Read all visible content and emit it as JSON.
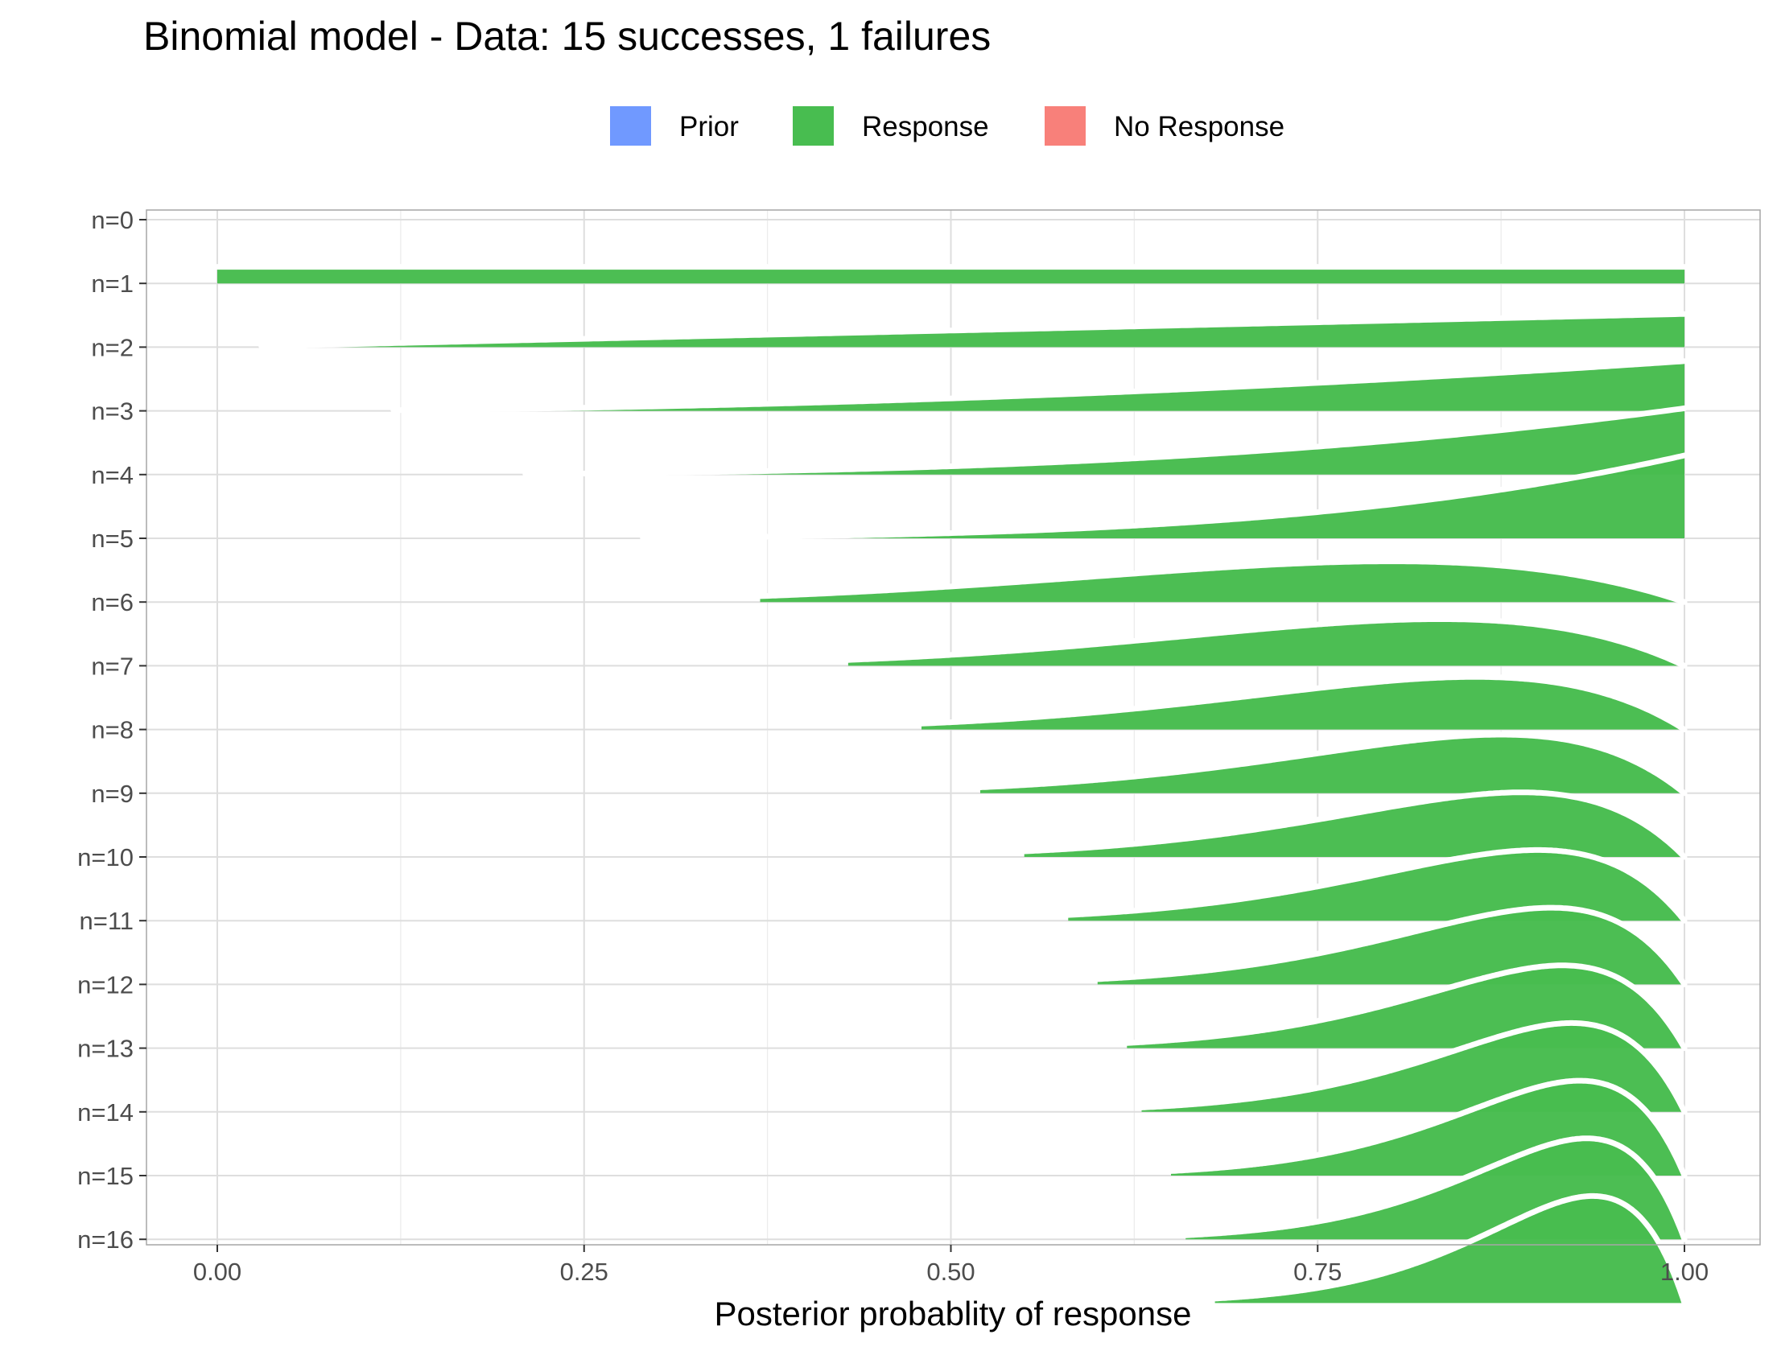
{
  "chart_data": {
    "type": "area",
    "subtype": "ridgeline",
    "title": "Binomial model - Data: 15 successes, 1 failures",
    "xlabel": "Posterior probablity of response",
    "ylabel": "",
    "xlim": [
      0,
      1
    ],
    "x_ticks": [
      "0.00",
      "0.25",
      "0.50",
      "0.75",
      "1.00"
    ],
    "x_tick_values": [
      0,
      0.25,
      0.5,
      0.75,
      1
    ],
    "y_categories": [
      "n=0",
      "n=1",
      "n=2",
      "n=3",
      "n=4",
      "n=5",
      "n=6",
      "n=7",
      "n=8",
      "n=9",
      "n=10",
      "n=11",
      "n=12",
      "n=13",
      "n=14",
      "n=15",
      "n=16"
    ],
    "legend": {
      "position": "top",
      "items": [
        {
          "label": "Prior",
          "color": "#7099FF"
        },
        {
          "label": "Response",
          "color": "#48BD50"
        },
        {
          "label": "No Response",
          "color": "#F8807A"
        }
      ]
    },
    "fill_color": "#48BD50",
    "outline_color": "#FFFFFF",
    "distribution": "beta",
    "prior": {
      "alpha": 1,
      "beta": 1
    },
    "ridges": [
      {
        "label": "n=0",
        "successes": 0,
        "failures": 0,
        "x_start": 0.0,
        "x_end": 1.0
      },
      {
        "label": "n=1",
        "successes": 1,
        "failures": 0,
        "x_start": 0.03,
        "x_end": 1.0
      },
      {
        "label": "n=2",
        "successes": 2,
        "failures": 0,
        "x_start": 0.12,
        "x_end": 1.0
      },
      {
        "label": "n=3",
        "successes": 3,
        "failures": 0,
        "x_start": 0.21,
        "x_end": 1.0
      },
      {
        "label": "n=4",
        "successes": 4,
        "failures": 0,
        "x_start": 0.29,
        "x_end": 1.0
      },
      {
        "label": "n=5",
        "successes": 4,
        "failures": 1,
        "x_start": 0.37,
        "x_end": 1.0
      },
      {
        "label": "n=6",
        "successes": 5,
        "failures": 1,
        "x_start": 0.43,
        "x_end": 1.0
      },
      {
        "label": "n=7",
        "successes": 6,
        "failures": 1,
        "x_start": 0.48,
        "x_end": 1.0
      },
      {
        "label": "n=8",
        "successes": 7,
        "failures": 1,
        "x_start": 0.52,
        "x_end": 1.0
      },
      {
        "label": "n=9",
        "successes": 8,
        "failures": 1,
        "x_start": 0.55,
        "x_end": 1.0
      },
      {
        "label": "n=10",
        "successes": 9,
        "failures": 1,
        "x_start": 0.58,
        "x_end": 1.0
      },
      {
        "label": "n=11",
        "successes": 10,
        "failures": 1,
        "x_start": 0.6,
        "x_end": 1.0
      },
      {
        "label": "n=12",
        "successes": 11,
        "failures": 1,
        "x_start": 0.62,
        "x_end": 1.0
      },
      {
        "label": "n=13",
        "successes": 12,
        "failures": 1,
        "x_start": 0.63,
        "x_end": 1.0
      },
      {
        "label": "n=14",
        "successes": 13,
        "failures": 1,
        "x_start": 0.65,
        "x_end": 1.0
      },
      {
        "label": "n=15",
        "successes": 14,
        "failures": 1,
        "x_start": 0.66,
        "x_end": 1.0
      },
      {
        "label": "n=16",
        "successes": 15,
        "failures": 1,
        "x_start": 0.68,
        "x_end": 1.0
      }
    ],
    "grid": true
  }
}
